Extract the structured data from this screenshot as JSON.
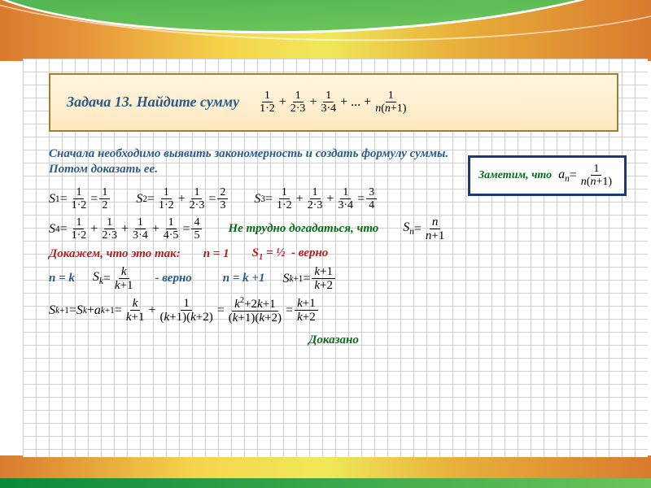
{
  "colors": {
    "blue": "#2a5a8a",
    "green": "#0a6a1a",
    "red": "#b02020",
    "box_border": "#1a3a7a",
    "grid": "#cfcfcf",
    "task_border": "#a08030"
  },
  "typography": {
    "heading_fontsize": 18,
    "body_fontsize": 15,
    "formula_fontsize": 14,
    "font_family": "Times New Roman"
  },
  "task": {
    "title": "Задача 13. Найдите сумму",
    "sum_tex": "1/(1·2) + 1/(2·3) + 1/(3·4) + ... + 1/(n(n+1))"
  },
  "intro": "Сначала необходимо выявить закономерность и создать формулу суммы. Потом доказать ее.",
  "note": {
    "label": "Заметим, что",
    "formula": "a_n = 1 / (n(n+1))"
  },
  "examples": {
    "S1": {
      "lhs": "S₁",
      "terms": [
        "1/(1·2)"
      ],
      "result": "1/2"
    },
    "S2": {
      "lhs": "S₂",
      "terms": [
        "1/(1·2)",
        "1/(2·3)"
      ],
      "result": "2/3"
    },
    "S3": {
      "lhs": "S₃",
      "terms": [
        "1/(1·2)",
        "1/(2·3)",
        "1/(3·4)"
      ],
      "result": "3/4"
    },
    "S4": {
      "lhs": "S₄",
      "terms": [
        "1/(1·2)",
        "1/(2·3)",
        "1/(3·4)",
        "1/(4·5)"
      ],
      "result": "4/5"
    }
  },
  "guess": {
    "label": "Не трудно догадаться, что",
    "formula": "S_n = n / (n+1)"
  },
  "proof": {
    "heading": "Докажем, что это так:",
    "base_n": "n = 1",
    "base_val": "S₁ = ½  - верно",
    "assume_n": "n = k",
    "assume_formula": "S_k = k / (k+1)",
    "assume_verno": "- верно",
    "step_n": "n = k +1",
    "step_formula": "S_{k+1} = (k+1)/(k+2)",
    "chain": "S_{k+1} = S_k + a_{k+1} = k/(k+1) + 1/((k+1)(k+2)) = (k²+2k+1)/((k+1)(k+2)) = (k+1)/(k+2)",
    "qed": "Доказано"
  }
}
